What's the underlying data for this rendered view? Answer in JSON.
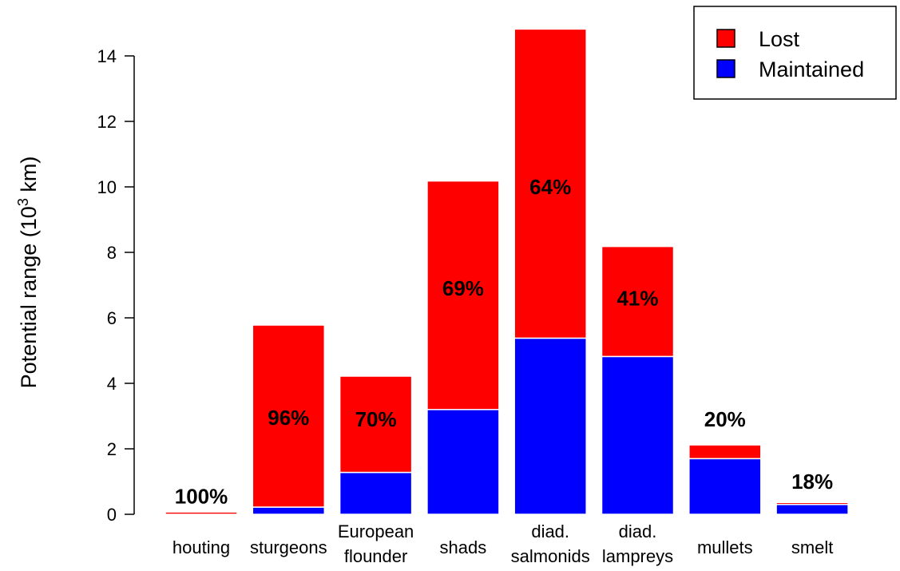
{
  "chart_data": {
    "type": "bar",
    "stacked": true,
    "categories": [
      [
        "houting"
      ],
      [
        "sturgeons"
      ],
      [
        "European",
        "flounder"
      ],
      [
        "shads"
      ],
      [
        "diad.",
        "salmonids"
      ],
      [
        "diad.",
        "lampreys"
      ],
      [
        "mullets"
      ],
      [
        "smelt"
      ]
    ],
    "series": [
      {
        "name": "Maintained",
        "color": "#0000ff",
        "values": [
          0.0,
          0.22,
          1.28,
          3.2,
          5.38,
          4.82,
          1.7,
          0.3
        ]
      },
      {
        "name": "Lost",
        "color": "#ff0000",
        "values": [
          0.07,
          5.56,
          2.94,
          6.98,
          9.44,
          3.36,
          0.42,
          0.06
        ]
      }
    ],
    "percent_labels": [
      "100%",
      "96%",
      "70%",
      "69%",
      "64%",
      "41%",
      "20%",
      "18%"
    ],
    "percent_label_y": [
      0.55,
      2.95,
      2.9,
      6.9,
      10.0,
      6.6,
      2.9,
      1.0
    ],
    "ylabel": "Potential range (10",
    "ylabel_sup": "3",
    "ylabel_end": " km)",
    "ylim": [
      0,
      14.8
    ],
    "yticks": [
      0,
      2,
      4,
      6,
      8,
      10,
      12,
      14
    ],
    "legend": {
      "placement": "top-right",
      "entries": [
        "Lost",
        "Maintained"
      ]
    }
  }
}
